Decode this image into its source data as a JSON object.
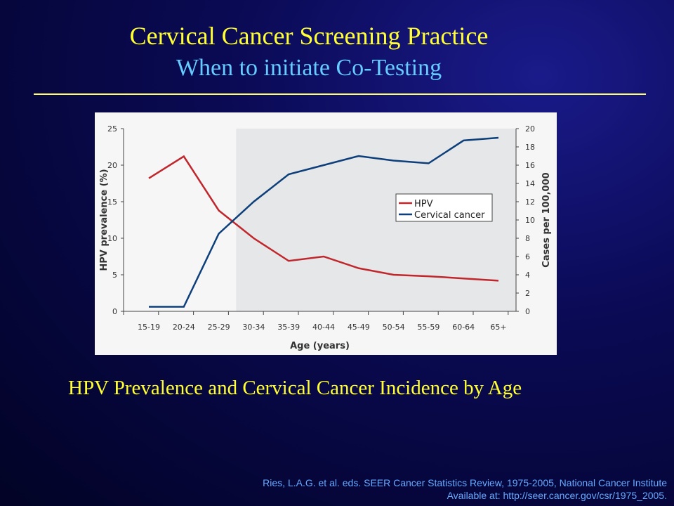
{
  "title": "Cervical Cancer Screening Practice",
  "subtitle": "When to initiate Co-Testing",
  "caption": "HPV Prevalence and Cervical Cancer Incidence by Age",
  "source": {
    "line1": "Ries, L.A.G. et al. eds. SEER Cancer Statistics Review, 1975-2005, National Cancer Institute",
    "line2": "Available at: http://seer.cancer.gov/csr/1975_2005."
  },
  "chart_data": {
    "type": "line",
    "categories": [
      "15-19",
      "20-24",
      "25-29",
      "30-34",
      "35-39",
      "40-44",
      "45-49",
      "50-54",
      "55-59",
      "60-64",
      "65+"
    ],
    "xlabel": "Age (years)",
    "ylabel": "HPV prevalence (%)",
    "y2label": "Cases per 100,000",
    "ylim": [
      0,
      25
    ],
    "yticks": [
      0,
      5,
      10,
      15,
      20,
      25
    ],
    "y2lim": [
      0,
      20
    ],
    "y2ticks": [
      0,
      2,
      4,
      6,
      8,
      10,
      12,
      14,
      16,
      18,
      20
    ],
    "shaded_from_category": "30-34",
    "legend_position": "center-right",
    "series": [
      {
        "name": "HPV",
        "axis": "left",
        "color": "#c0272d",
        "values": [
          18.2,
          21.2,
          13.8,
          10.0,
          6.9,
          7.5,
          5.9,
          5.0,
          4.8,
          4.5,
          4.2
        ]
      },
      {
        "name": "Cervical cancer",
        "axis": "right",
        "color": "#0d3f7a",
        "values": [
          0.5,
          0.5,
          8.5,
          12.0,
          15.0,
          16.0,
          17.0,
          16.5,
          16.2,
          18.7,
          19.0
        ]
      }
    ]
  }
}
